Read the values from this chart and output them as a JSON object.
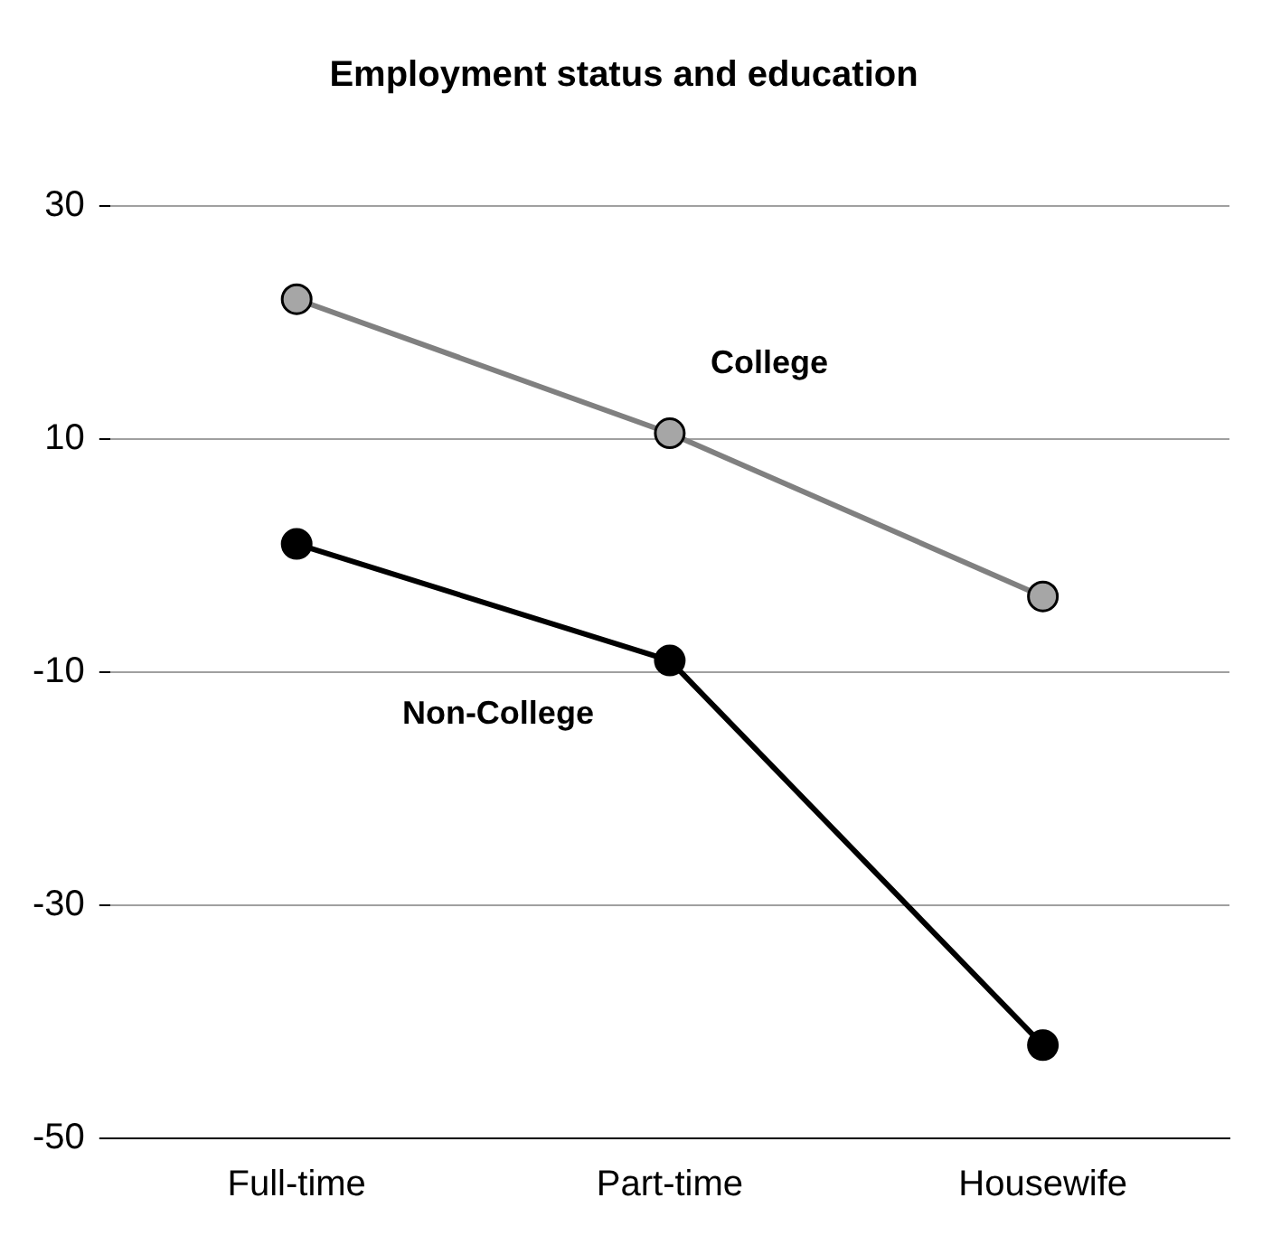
{
  "chart_data": {
    "type": "line",
    "title": "Employment status and education",
    "categories": [
      "Full-time",
      "Part-time",
      "Housewife"
    ],
    "series": [
      {
        "name": "College",
        "color": "#808080",
        "values": [
          22,
          10.5,
          -3.5
        ]
      },
      {
        "name": "Non-College",
        "color": "#000000",
        "values": [
          1,
          -9,
          -42
        ]
      }
    ],
    "ylim": [
      -50,
      30
    ],
    "yticks": [
      -50,
      -30,
      -10,
      10,
      30
    ],
    "grid": "y",
    "legend": false,
    "marker": "circle",
    "line_style": "solid"
  }
}
